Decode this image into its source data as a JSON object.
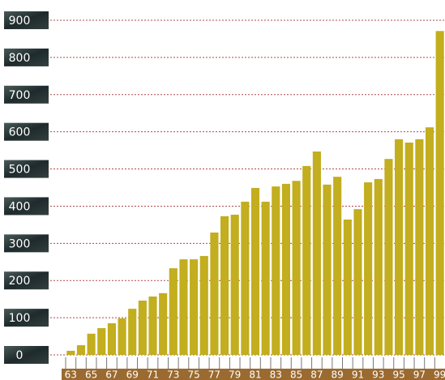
{
  "chart_data": {
    "type": "bar",
    "categories": [
      "63",
      null,
      "65",
      null,
      "67",
      null,
      "69",
      null,
      "71",
      null,
      "73",
      null,
      "75",
      null,
      "77",
      null,
      "79",
      null,
      "81",
      null,
      "83",
      null,
      "85",
      null,
      "87",
      null,
      "89",
      null,
      "91",
      null,
      "93",
      null,
      "95",
      null,
      "97",
      null,
      "99"
    ],
    "values": [
      11,
      26,
      57,
      72,
      85,
      98,
      124,
      146,
      157,
      166,
      233,
      257,
      257,
      266,
      329,
      373,
      377,
      412,
      449,
      412,
      453,
      460,
      468,
      508,
      547,
      458,
      479,
      364,
      392,
      464,
      473,
      527,
      580,
      571,
      580,
      612,
      871
    ],
    "color": "#c2ae1e",
    "ylim": [
      0,
      900
    ],
    "yticks": [
      0,
      100,
      200,
      300,
      400,
      500,
      600,
      700,
      800,
      900
    ],
    "grid": true
  }
}
